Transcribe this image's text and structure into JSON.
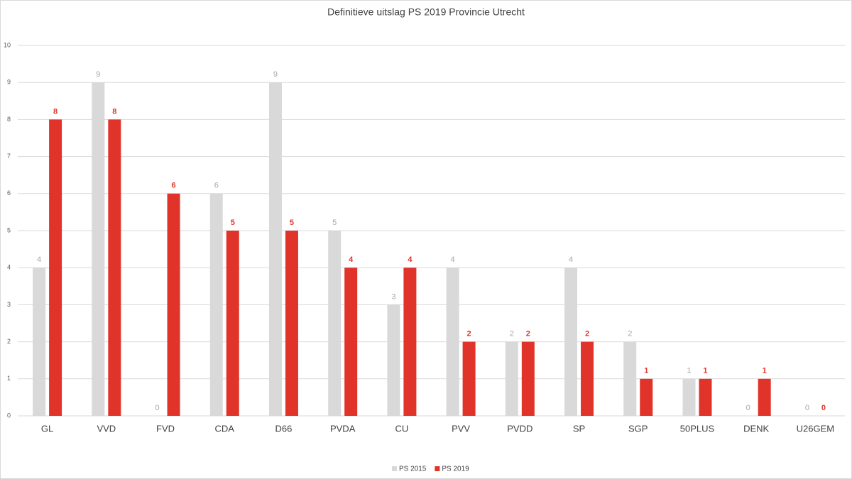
{
  "chart_data": {
    "type": "bar",
    "title": "Definitieve uitslag PS 2019 Provincie Utrecht",
    "categories": [
      "GL",
      "VVD",
      "FVD",
      "CDA",
      "D66",
      "PVDA",
      "CU",
      "PVV",
      "PVDD",
      "SP",
      "SGP",
      "50PLUS",
      "DENK",
      "U26GEM"
    ],
    "series": [
      {
        "name": "PS 2015",
        "color": "#d9d9d9",
        "values": [
          4,
          9,
          0,
          6,
          9,
          5,
          3,
          4,
          2,
          4,
          2,
          1,
          0,
          0
        ]
      },
      {
        "name": "PS 2019",
        "color": "#e0342b",
        "values": [
          8,
          8,
          6,
          5,
          5,
          4,
          4,
          2,
          2,
          2,
          1,
          1,
          1,
          0
        ]
      }
    ],
    "ylim": [
      0,
      10
    ],
    "yticks": [
      0,
      1,
      2,
      3,
      4,
      5,
      6,
      7,
      8,
      9,
      10
    ],
    "grid": true,
    "legend": "bottom"
  }
}
